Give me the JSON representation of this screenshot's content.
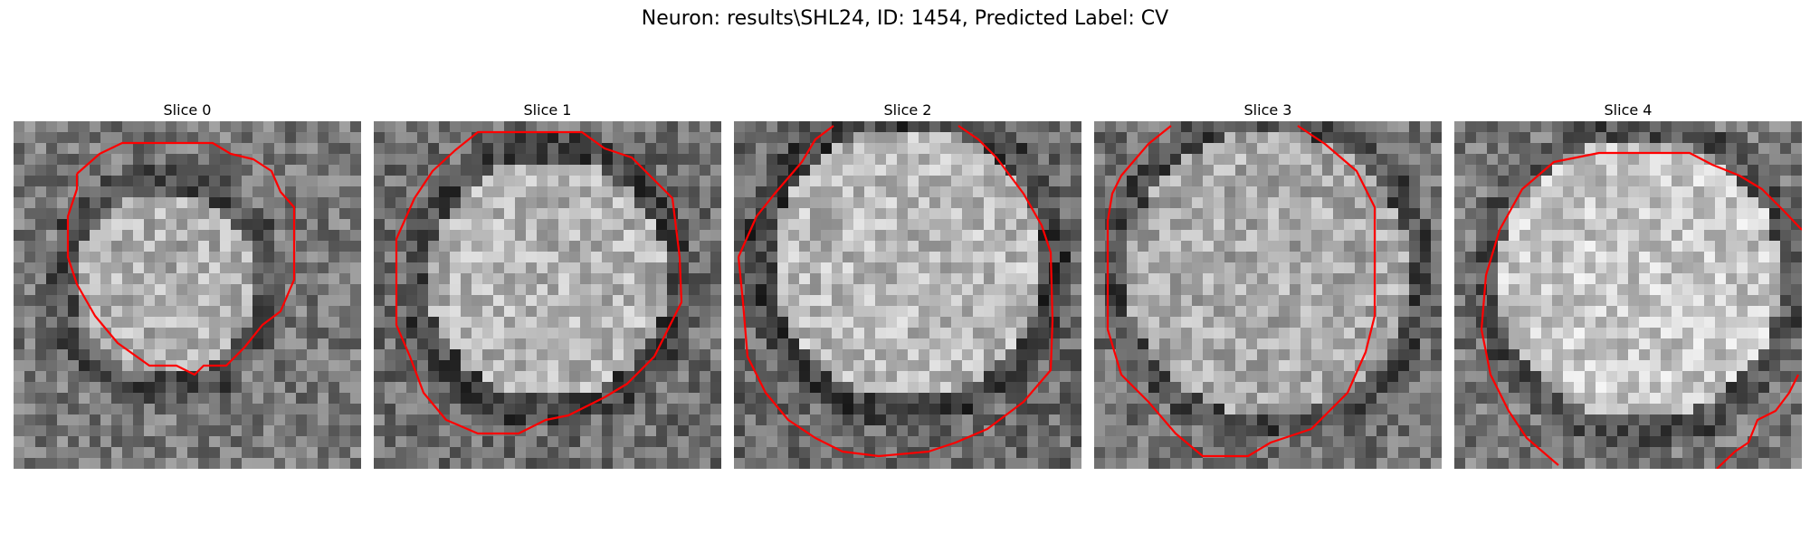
{
  "figure": {
    "title": "Neuron: results\\SHL24, ID: 1454, Predicted Label: CV"
  },
  "contour_color": "#ff0000",
  "slices": [
    {
      "label": "Slice 0"
    },
    {
      "label": "Slice 1"
    },
    {
      "label": "Slice 2"
    },
    {
      "label": "Slice 3"
    },
    {
      "label": "Slice 4"
    }
  ]
}
